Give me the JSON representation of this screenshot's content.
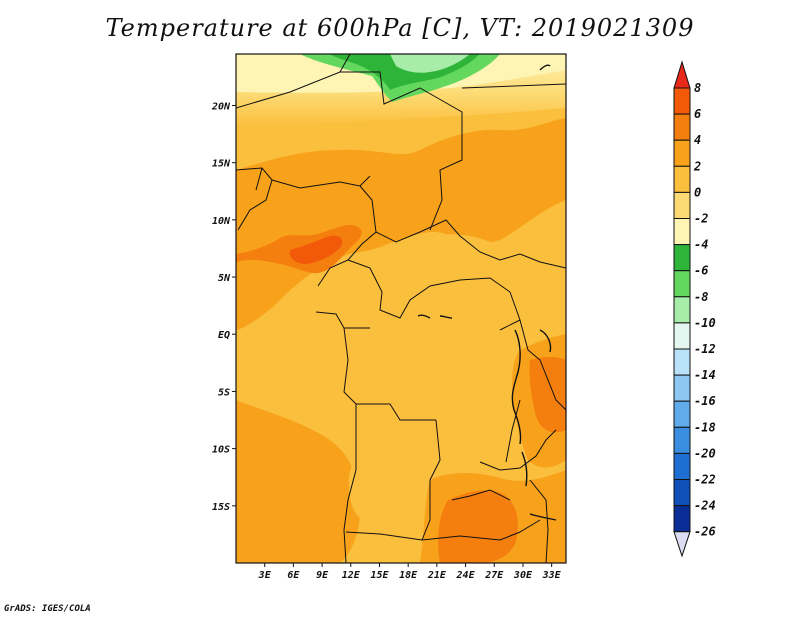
{
  "title": "Temperature at 600hPa [C], VT: 2019021309",
  "credit": "GrADS: IGES/COLA",
  "map": {
    "lon_range": [
      0,
      34.5
    ],
    "lat_range": [
      -20,
      24.5
    ],
    "lat_ticks": [
      {
        "value": 20,
        "label": "20N"
      },
      {
        "value": 15,
        "label": "15N"
      },
      {
        "value": 10,
        "label": "10N"
      },
      {
        "value": 5,
        "label": "5N"
      },
      {
        "value": 0,
        "label": "EQ"
      },
      {
        "value": -5,
        "label": "5S"
      },
      {
        "value": -10,
        "label": "10S"
      },
      {
        "value": -15,
        "label": "15S"
      }
    ],
    "lon_ticks": [
      {
        "value": 3,
        "label": "3E"
      },
      {
        "value": 6,
        "label": "6E"
      },
      {
        "value": 9,
        "label": "9E"
      },
      {
        "value": 12,
        "label": "12E"
      },
      {
        "value": 15,
        "label": "15E"
      },
      {
        "value": 18,
        "label": "18E"
      },
      {
        "value": 21,
        "label": "21E"
      },
      {
        "value": 24,
        "label": "24E"
      },
      {
        "value": 27,
        "label": "27E"
      },
      {
        "value": 30,
        "label": "30E"
      },
      {
        "value": 33,
        "label": "33E"
      }
    ]
  },
  "colorbar": {
    "labels": [
      "8",
      "6",
      "4",
      "2",
      "0",
      "-2",
      "-4",
      "-6",
      "-8",
      "-10",
      "-12",
      "-14",
      "-16",
      "-18",
      "-20",
      "-22",
      "-24",
      "-26"
    ],
    "colors": [
      "#e8281a",
      "#f25a0a",
      "#f57f0e",
      "#f8a21b",
      "#fbbf3e",
      "#fddb74",
      "#fef4b4",
      "#2fb43a",
      "#64d75e",
      "#a8ecaa",
      "#e3f7f0",
      "#b9e1f7",
      "#8ec8f2",
      "#62abea",
      "#3b8de0",
      "#1f6fd2",
      "#0f4fb8",
      "#0a2e96",
      "#0b1060",
      "#dcdcf2"
    ]
  }
}
